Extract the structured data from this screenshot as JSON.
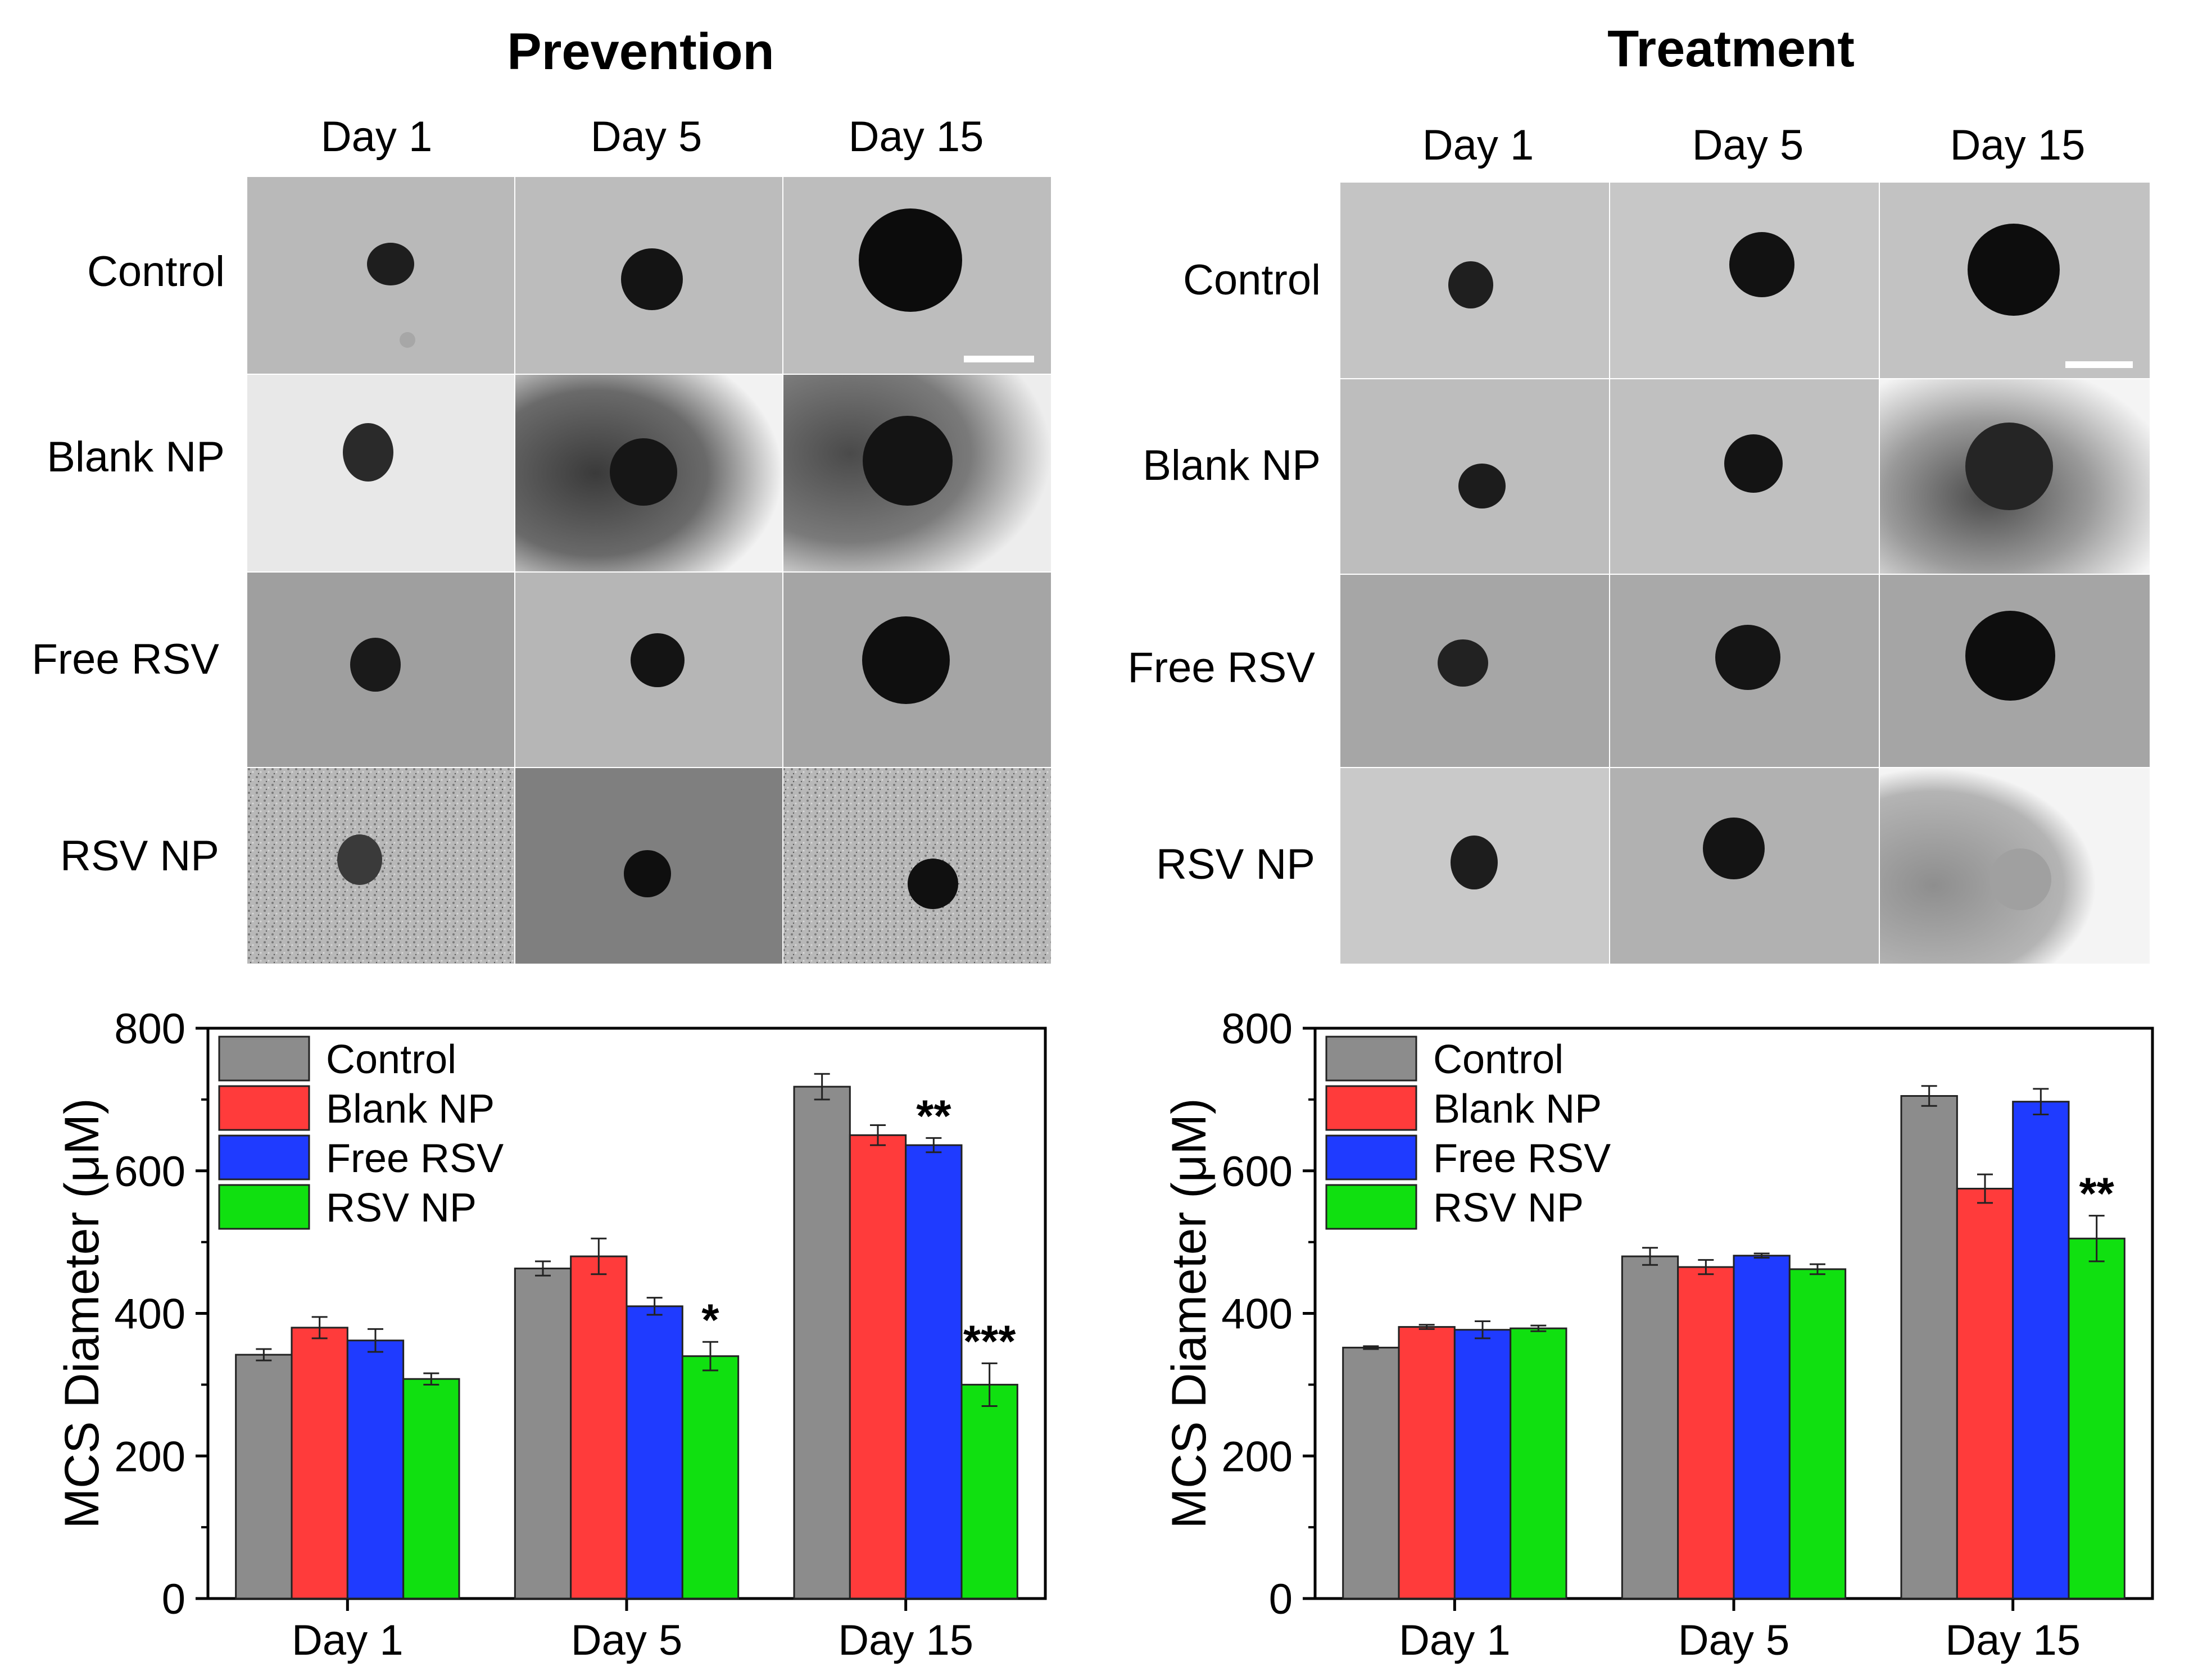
{
  "prevention": {
    "title": "Prevention",
    "days": [
      "Day 1",
      "Day 5",
      "Day 15"
    ],
    "rows": [
      "Control",
      "Blank NP",
      "Free RSV",
      "RSV NP"
    ]
  },
  "treatment": {
    "title": "Treatment",
    "days": [
      "Day 1",
      "Day 5",
      "Day 15"
    ],
    "rows": [
      "Control",
      "Blank NP",
      "Free RSV",
      "RSV NP"
    ]
  },
  "colors": {
    "control": "#8c8c8c",
    "blank_np": "#ff3b3b",
    "free_rsv": "#1f3bff",
    "rsv_np": "#10e010"
  },
  "chart_data": [
    {
      "type": "bar",
      "panel": "Prevention",
      "categories": [
        "Day 1",
        "Day 5",
        "Day 15"
      ],
      "ylabel": "MCS Diameter (μM)",
      "xlabel": "",
      "ylim": [
        0,
        800
      ],
      "yticks": [
        0,
        200,
        400,
        600,
        800
      ],
      "legend_position": "top-left",
      "series": [
        {
          "name": "Control",
          "color": "#8c8c8c",
          "values": [
            342,
            463,
            718
          ],
          "errors": [
            8,
            10,
            18
          ]
        },
        {
          "name": "Blank NP",
          "color": "#ff3b3b",
          "values": [
            380,
            480,
            650
          ],
          "errors": [
            15,
            25,
            14
          ]
        },
        {
          "name": "Free RSV",
          "color": "#1f3bff",
          "values": [
            362,
            410,
            636
          ],
          "errors": [
            16,
            12,
            10
          ]
        },
        {
          "name": "RSV NP",
          "color": "#10e010",
          "values": [
            308,
            340,
            300
          ],
          "errors": [
            8,
            20,
            30
          ]
        }
      ],
      "annotations": [
        {
          "category": "Day 5",
          "series": "RSV NP",
          "text": "*"
        },
        {
          "category": "Day 15",
          "series": "Free RSV",
          "text": "**"
        },
        {
          "category": "Day 15",
          "series": "RSV NP",
          "text": "***"
        }
      ]
    },
    {
      "type": "bar",
      "panel": "Treatment",
      "categories": [
        "Day 1",
        "Day 5",
        "Day 15"
      ],
      "ylabel": "MCS Diameter (μM)",
      "xlabel": "",
      "ylim": [
        0,
        800
      ],
      "yticks": [
        0,
        200,
        400,
        600,
        800
      ],
      "legend_position": "top-left",
      "series": [
        {
          "name": "Control",
          "color": "#8c8c8c",
          "values": [
            352,
            480,
            705
          ],
          "errors": [
            2,
            12,
            14
          ]
        },
        {
          "name": "Blank NP",
          "color": "#ff3b3b",
          "values": [
            381,
            465,
            575
          ],
          "errors": [
            3,
            10,
            20
          ]
        },
        {
          "name": "Free RSV",
          "color": "#1f3bff",
          "values": [
            377,
            481,
            697
          ],
          "errors": [
            12,
            3,
            18
          ]
        },
        {
          "name": "RSV NP",
          "color": "#10e010",
          "values": [
            379,
            462,
            505
          ],
          "errors": [
            4,
            7,
            32
          ]
        }
      ],
      "annotations": [
        {
          "category": "Day 15",
          "series": "RSV NP",
          "text": "**"
        }
      ]
    }
  ]
}
